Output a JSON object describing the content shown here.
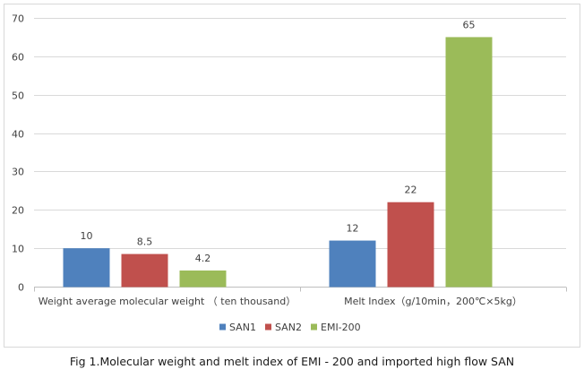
{
  "caption": "Fig 1.Molecular weight and melt index of EMI - 200 and imported high flow SAN",
  "chart_data": {
    "type": "bar",
    "categories": [
      "Weight average molecular weight （ ten thousand）",
      "Melt Index（g/10min，200℃×5kg）"
    ],
    "series": [
      {
        "name": "SAN1",
        "values": [
          10,
          12
        ],
        "color": "#4f81bd"
      },
      {
        "name": "SAN2",
        "values": [
          8.5,
          22
        ],
        "color": "#c0504d"
      },
      {
        "name": "EMI-200",
        "values": [
          4.2,
          65
        ],
        "color": "#9bbb59"
      }
    ],
    "ylim": [
      0,
      70
    ],
    "yticks": [
      0,
      10,
      20,
      30,
      40,
      50,
      60,
      70
    ],
    "grid": true,
    "legend": "bottom"
  }
}
